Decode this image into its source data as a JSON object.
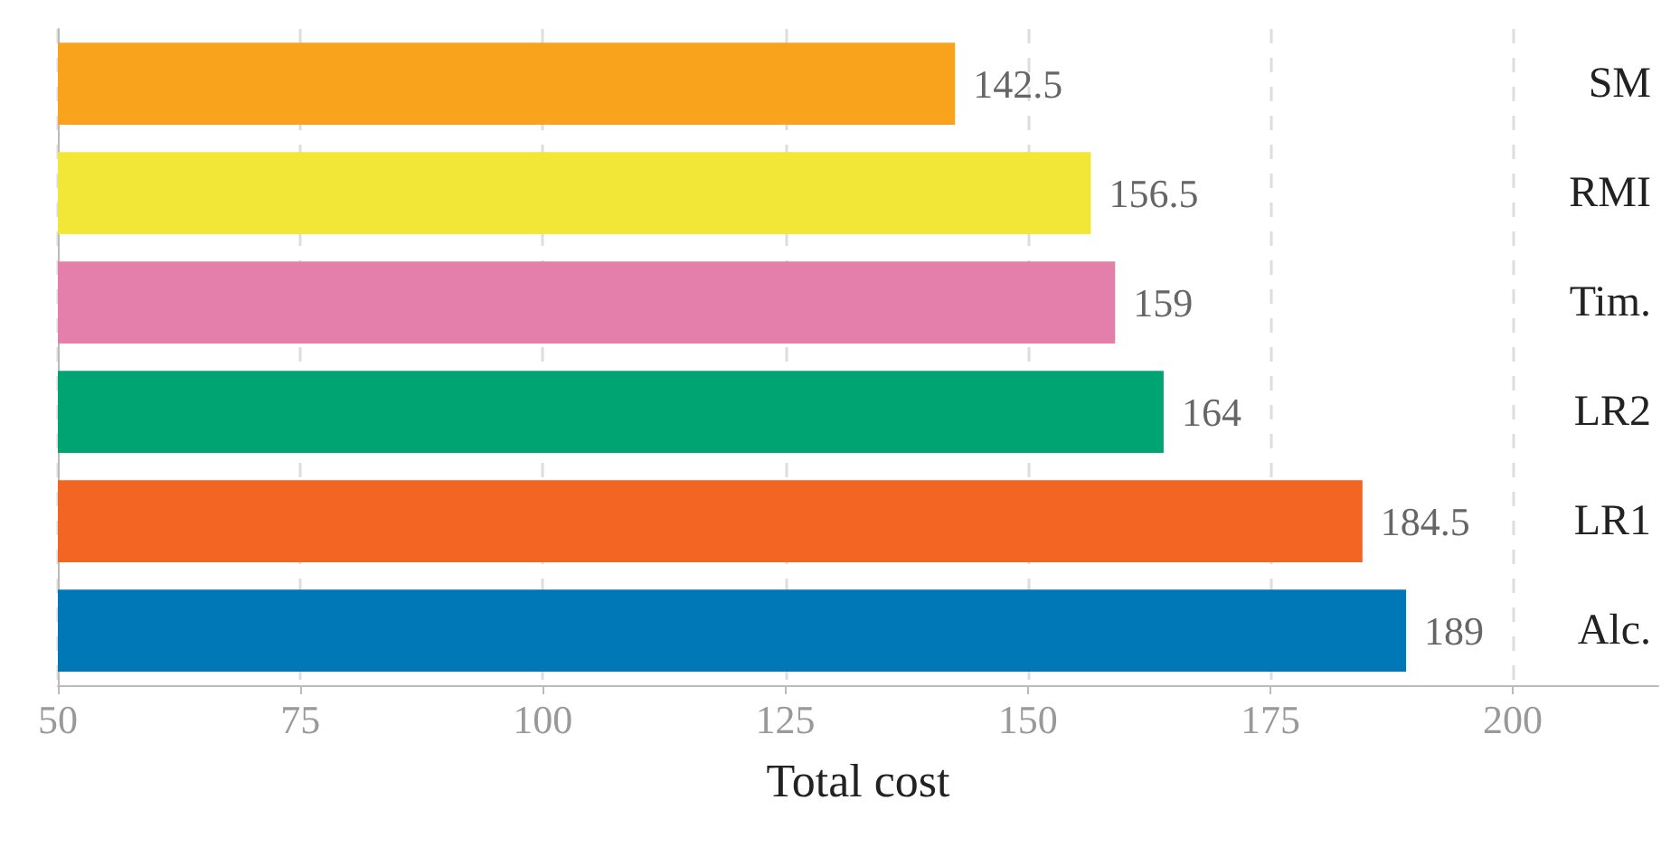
{
  "chart_data": {
    "type": "bar",
    "orientation": "horizontal",
    "xlabel": "Total cost",
    "categories": [
      "SM",
      "RMI",
      "Tim.",
      "LR2",
      "LR1",
      "Alc."
    ],
    "values": [
      142.5,
      156.5,
      159,
      164,
      184.5,
      189
    ],
    "colors": [
      "#f9a21c",
      "#f2e636",
      "#e47fac",
      "#00a472",
      "#f26522",
      "#0077b6"
    ],
    "xlim": [
      50,
      215
    ],
    "xticks": [
      50,
      75,
      100,
      125,
      150,
      175,
      200
    ],
    "grid": "x",
    "data_labels": true
  }
}
